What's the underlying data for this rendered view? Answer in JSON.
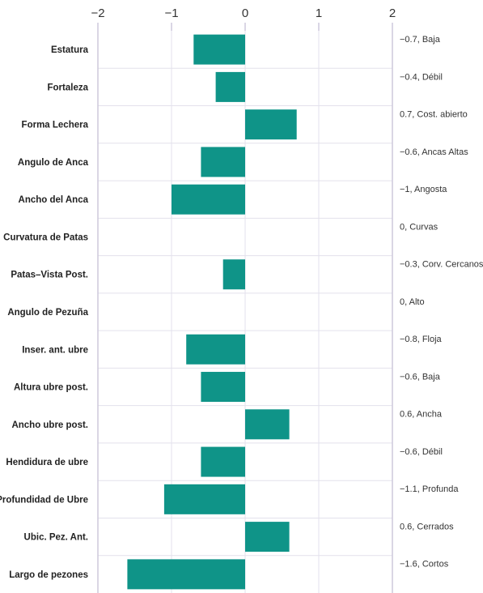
{
  "chart_data": {
    "type": "bar",
    "orientation": "horizontal",
    "categories": [
      "Estatura",
      "Fortaleza",
      "Forma Lechera",
      "Angulo de Anca",
      "Ancho del Anca",
      "Curvatura de Patas",
      "Patas–Vista Post.",
      "Angulo de Pezuña",
      "Inser. ant. ubre",
      "Altura ubre post.",
      "Ancho ubre post.",
      "Hendidura de ubre",
      "Profundidad de Ubre",
      "Ubic. Pez. Ant.",
      "Largo de pezones"
    ],
    "values": [
      -0.7,
      -0.4,
      0.7,
      -0.6,
      -1.0,
      0,
      -0.3,
      0,
      -0.8,
      -0.6,
      0.6,
      -0.6,
      -1.1,
      0.6,
      -1.6
    ],
    "value_labels": [
      "−0.7, Baja",
      "−0.4, Débil",
      "0.7, Cost. abierto",
      "−0.6, Ancas Altas",
      "−1, Angosta",
      "0, Curvas",
      "−0.3, Corv. Cercanos",
      "0, Alto",
      "−0.8, Floja",
      "−0.6, Baja",
      "0.6, Ancha",
      "−0.6, Débil",
      "−1.1, Profunda",
      "0.6, Cerrados",
      "−1.6, Cortos"
    ],
    "xlim": [
      -2,
      2
    ],
    "xticks": [
      -2,
      -1,
      0,
      1,
      2
    ],
    "xtick_labels": [
      "−2",
      "−1",
      "0",
      "1",
      "2"
    ],
    "grid": true,
    "bar_color": "#0f9488",
    "grid_color": "#e3e1ec",
    "axis_color": "#cdc9dc"
  }
}
